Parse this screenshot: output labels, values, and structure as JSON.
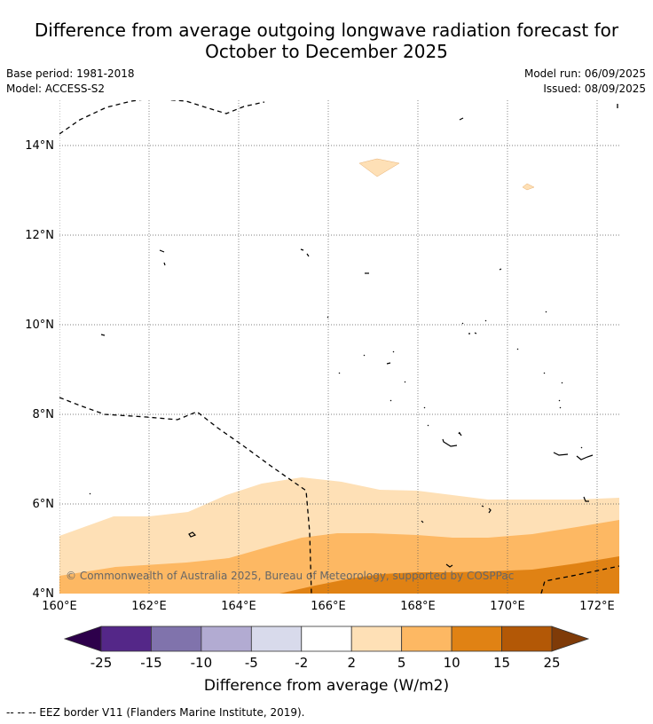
{
  "title": {
    "line1": "Difference from average outgoing longwave radiation forecast for",
    "line2": "October to December 2025"
  },
  "meta": {
    "base_period": "Base period: 1981-2018",
    "model": "Model: ACCESS-S2",
    "model_run": "Model run: 06/09/2025",
    "issued": "Issued: 08/09/2025"
  },
  "map": {
    "copyright": "© Commonwealth of Australia 2025, Bureau of Meteorology, supported by COSPPac",
    "lon_labels": [
      "160°E",
      "162°E",
      "164°E",
      "166°E",
      "168°E",
      "170°E",
      "172°E"
    ],
    "lat_labels": [
      "4°N",
      "6°N",
      "8°N",
      "10°N",
      "12°N",
      "14°N"
    ],
    "extent": {
      "lon": [
        160,
        172.5
      ],
      "lat": [
        4,
        15
      ]
    }
  },
  "colorbar": {
    "ticks": [
      "-25",
      "-15",
      "-10",
      "-5",
      "-2",
      "2",
      "5",
      "10",
      "15",
      "25"
    ],
    "colors": {
      "under": "#2d004b",
      "bins": [
        "#542788",
        "#8073ac",
        "#b2abd2",
        "#d8daeb",
        "#ffffff",
        "#fee0b6",
        "#fdb863",
        "#e08214",
        "#b35806"
      ],
      "over": "#7f3b08"
    },
    "label": "Difference from average (W/m2)"
  },
  "footnote": "--  --  -- EEZ border V11 (Flanders Marine Institute, 2019)."
}
